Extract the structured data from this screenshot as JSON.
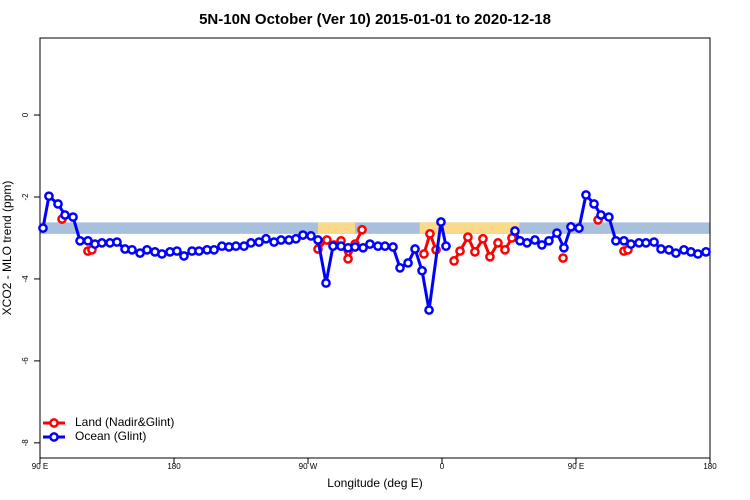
{
  "chart_data": {
    "type": "line",
    "title": "5N-10N October (Ver 10)   2015-01-01 to 2020-12-18",
    "xlabel": "Longitude (deg E)",
    "ylabel": "XCO2 - MLO trend (ppm)",
    "xlim": [
      90,
      540
    ],
    "ylim": [
      -8.37,
      1.88
    ],
    "xticks": [
      {
        "value": 90,
        "label": "90 E"
      },
      180,
      {
        "value": 270,
        "label": "90 W"
      },
      {
        "value": 360,
        "label": "0"
      },
      {
        "value": 450,
        "label": "90 E"
      },
      {
        "value": 540,
        "label": "180"
      }
    ],
    "yticks": [
      -8,
      -6,
      -4,
      -2,
      0
    ],
    "band_ylim": [
      -2.9,
      -2.62
    ],
    "band_color": "#a9c0dc",
    "highlight_xspans": [
      [
        276.7,
        301.6
      ],
      [
        345,
        412
      ]
    ],
    "highlight_color": "#fbd98a",
    "legend": "bottom-left",
    "series": [
      {
        "name": "Land (Nadir&Glint)",
        "color": "#ff0000",
        "x": [
          104.8,
          122.2,
          124.9,
          276.7,
          282.7,
          287.5,
          292.2,
          296.9,
          301.6,
          306.3,
          347.9,
          351.9,
          356.0,
          368.1,
          372.1,
          377.4,
          382.1,
          387.5,
          392.2,
          397.6,
          402.3,
          407.0,
          441.3,
          464.8,
          482.2,
          484.9
        ],
        "values": [
          -2.54,
          -3.32,
          -3.29,
          -3.27,
          -3.05,
          -3.17,
          -3.07,
          -3.51,
          -3.15,
          -2.8,
          -3.39,
          -2.9,
          -3.29,
          -3.56,
          -3.32,
          -2.98,
          -3.34,
          -3.02,
          -3.46,
          -3.12,
          -3.29,
          -3.0,
          -3.49,
          -2.56,
          -3.32,
          -3.29
        ]
      },
      {
        "name": "Ocean (Glint)",
        "color": "#0000ff",
        "x": [
          92.0,
          96.0,
          102.1,
          106.8,
          112.2,
          116.9,
          122.2,
          126.9,
          131.6,
          137.0,
          141.7,
          147.1,
          151.8,
          157.2,
          161.9,
          167.2,
          171.9,
          177.3,
          182.0,
          186.7,
          192.1,
          196.8,
          202.2,
          206.9,
          212.2,
          216.9,
          221.6,
          227.0,
          231.7,
          237.1,
          241.8,
          247.2,
          251.9,
          257.2,
          261.9,
          266.6,
          272.0,
          276.7,
          282.1,
          286.8,
          292.2,
          296.9,
          301.6,
          307.0,
          311.6,
          317.0,
          321.7,
          327.1,
          331.8,
          337.2,
          341.9,
          346.6,
          351.3,
          359.3,
          362.7,
          409.0,
          412.4,
          417.1,
          422.4,
          427.1,
          431.8,
          437.2,
          441.9,
          446.6,
          452.0,
          456.7,
          462.1,
          466.8,
          472.1,
          476.8,
          482.2,
          486.9,
          492.3,
          497.0,
          502.4,
          507.1,
          512.4,
          517.1,
          522.5,
          527.2,
          531.9,
          537.3
        ],
        "values": [
          -2.76,
          -1.98,
          -2.17,
          -2.44,
          -2.49,
          -3.07,
          -3.07,
          -3.15,
          -3.12,
          -3.12,
          -3.1,
          -3.27,
          -3.29,
          -3.37,
          -3.29,
          -3.34,
          -3.39,
          -3.34,
          -3.32,
          -3.44,
          -3.32,
          -3.32,
          -3.29,
          -3.29,
          -3.2,
          -3.22,
          -3.2,
          -3.2,
          -3.12,
          -3.1,
          -3.02,
          -3.1,
          -3.05,
          -3.05,
          -3.02,
          -2.93,
          -2.95,
          -3.05,
          -4.1,
          -3.2,
          -3.2,
          -3.24,
          -3.22,
          -3.24,
          -3.15,
          -3.2,
          -3.2,
          -3.22,
          -3.73,
          -3.61,
          -3.27,
          -3.8,
          -4.76,
          -2.61,
          -3.2,
          -2.83,
          -3.07,
          -3.12,
          -3.05,
          -3.17,
          -3.07,
          -2.88,
          -3.24,
          -2.73,
          -2.76,
          -1.95,
          -2.17,
          -2.44,
          -2.49,
          -3.07,
          -3.07,
          -3.15,
          -3.12,
          -3.12,
          -3.1,
          -3.27,
          -3.29,
          -3.37,
          -3.29,
          -3.34,
          -3.39,
          -3.34
        ]
      }
    ]
  }
}
